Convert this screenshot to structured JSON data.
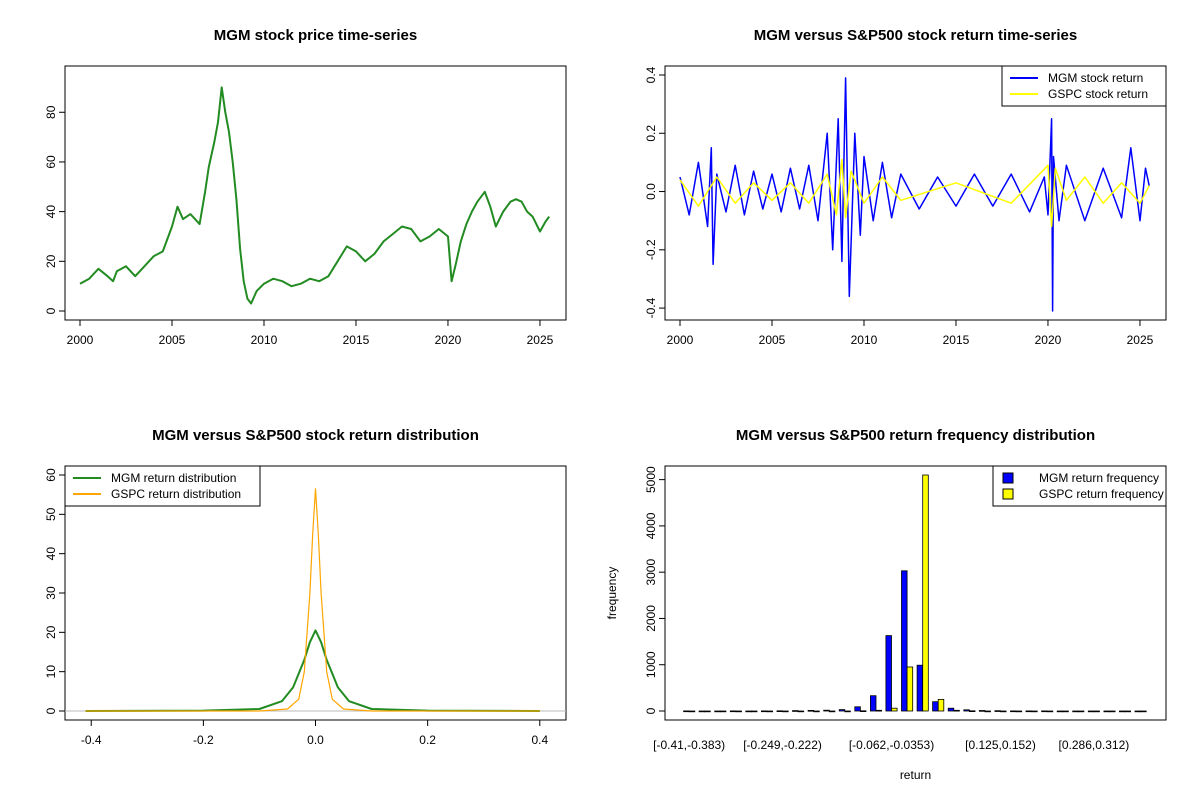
{
  "charts": [
    {
      "type": "line",
      "title": "MGM stock price time-series",
      "xlabel": "",
      "ylabel": "",
      "xlim": [
        2000,
        2025.6
      ],
      "ylim": [
        0,
        95
      ],
      "xticks": [
        2000,
        2005,
        2010,
        2015,
        2020,
        2025
      ],
      "yticks": [
        0,
        20,
        40,
        60,
        80
      ],
      "series": [
        {
          "name": "MGM stock price",
          "color": "#228B22",
          "x": [
            2000,
            2000.5,
            2001,
            2001.5,
            2001.8,
            2002,
            2002.5,
            2003,
            2003.5,
            2004,
            2004.5,
            2005,
            2005.3,
            2005.6,
            2006,
            2006.5,
            2006.8,
            2007,
            2007.3,
            2007.5,
            2007.7,
            2007.9,
            2008.1,
            2008.3,
            2008.5,
            2008.7,
            2008.9,
            2009.1,
            2009.3,
            2009.6,
            2010,
            2010.5,
            2011,
            2011.5,
            2012,
            2012.5,
            2013,
            2013.5,
            2014,
            2014.5,
            2015,
            2015.5,
            2016,
            2016.5,
            2017,
            2017.5,
            2018,
            2018.5,
            2019,
            2019.5,
            2020,
            2020.2,
            2020.4,
            2020.7,
            2021,
            2021.3,
            2021.6,
            2022,
            2022.3,
            2022.6,
            2023,
            2023.4,
            2023.7,
            2024,
            2024.3,
            2024.6,
            2025,
            2025.3,
            2025.5
          ],
          "y": [
            11,
            13,
            17,
            14,
            12,
            16,
            18,
            14,
            18,
            22,
            24,
            34,
            42,
            37,
            39,
            35,
            48,
            58,
            68,
            76,
            90,
            80,
            72,
            60,
            45,
            25,
            12,
            5,
            3,
            8,
            11,
            13,
            12,
            10,
            11,
            13,
            12,
            14,
            20,
            26,
            24,
            20,
            23,
            28,
            31,
            34,
            33,
            28,
            30,
            33,
            30,
            12,
            18,
            28,
            35,
            40,
            44,
            48,
            42,
            34,
            40,
            44,
            45,
            44,
            40,
            38,
            32,
            36,
            38
          ]
        }
      ]
    },
    {
      "type": "line",
      "title": "MGM versus S&P500 stock return time-series",
      "xlabel": "",
      "ylabel": "",
      "xlim": [
        2000,
        2025.6
      ],
      "ylim": [
        -0.41,
        0.4
      ],
      "xticks": [
        2000,
        2005,
        2010,
        2015,
        2020,
        2025
      ],
      "yticks": [
        -0.4,
        -0.2,
        0.0,
        0.2,
        0.4
      ],
      "ytick_labels": [
        "-0.4",
        "-0.2",
        "0.0",
        "0.2",
        "0.4"
      ],
      "series": [
        {
          "name": "MGM stock return",
          "color": "#0000FF",
          "x": [
            2000,
            2000.5,
            2001,
            2001.5,
            2001.7,
            2001.8,
            2002,
            2002.5,
            2003,
            2003.5,
            2004,
            2004.5,
            2005,
            2005.5,
            2006,
            2006.5,
            2007,
            2007.5,
            2008,
            2008.3,
            2008.6,
            2008.8,
            2009,
            2009.2,
            2009.5,
            2009.8,
            2010,
            2010.5,
            2011,
            2011.5,
            2012,
            2013,
            2014,
            2015,
            2016,
            2017,
            2018,
            2019,
            2019.8,
            2020,
            2020.2,
            2020.25,
            2020.3,
            2020.6,
            2021,
            2022,
            2023,
            2024,
            2024.5,
            2025,
            2025.3,
            2025.5
          ],
          "y": [
            0.05,
            -0.08,
            0.1,
            -0.12,
            0.15,
            -0.25,
            0.06,
            -0.07,
            0.09,
            -0.08,
            0.07,
            -0.06,
            0.06,
            -0.07,
            0.08,
            -0.06,
            0.09,
            -0.1,
            0.2,
            -0.2,
            0.25,
            -0.24,
            0.39,
            -0.36,
            0.2,
            -0.15,
            0.12,
            -0.1,
            0.1,
            -0.09,
            0.06,
            -0.06,
            0.05,
            -0.05,
            0.06,
            -0.05,
            0.06,
            -0.07,
            0.05,
            -0.08,
            0.25,
            -0.41,
            0.12,
            -0.1,
            0.09,
            -0.1,
            0.08,
            -0.09,
            0.15,
            -0.1,
            0.08,
            0.02
          ]
        },
        {
          "name": "GSPC stock return",
          "color": "#FFFF00",
          "x": [
            2000,
            2001,
            2002,
            2003,
            2004,
            2005,
            2006,
            2007,
            2008,
            2008.5,
            2008.8,
            2009,
            2009.3,
            2010,
            2011,
            2012,
            2015,
            2018,
            2020,
            2020.2,
            2020.4,
            2021,
            2022,
            2023,
            2024,
            2025,
            2025.5
          ],
          "y": [
            0.04,
            -0.05,
            0.05,
            -0.04,
            0.03,
            -0.03,
            0.03,
            -0.04,
            0.06,
            -0.08,
            0.11,
            -0.09,
            0.07,
            -0.04,
            0.05,
            -0.03,
            0.03,
            -0.04,
            0.09,
            -0.12,
            0.08,
            -0.03,
            0.05,
            -0.04,
            0.03,
            -0.04,
            0.02
          ]
        }
      ],
      "legend": {
        "position": "top-right",
        "items": [
          "MGM stock return",
          "GSPC stock return"
        ]
      }
    },
    {
      "type": "line",
      "title": "MGM versus S&P500 stock return distribution",
      "xlabel": "",
      "ylabel": "",
      "xlim": [
        -0.42,
        0.42
      ],
      "ylim": [
        0,
        60
      ],
      "xticks": [
        -0.4,
        -0.2,
        0.0,
        0.2,
        0.4
      ],
      "xtick_labels": [
        "-0.4",
        "-0.2",
        "0.0",
        "0.2",
        "0.4"
      ],
      "yticks": [
        0,
        10,
        20,
        30,
        40,
        50,
        60
      ],
      "series": [
        {
          "name": "MGM return distribution",
          "color": "#228B22",
          "x": [
            -0.41,
            -0.2,
            -0.1,
            -0.06,
            -0.04,
            -0.02,
            -0.01,
            0,
            0.01,
            0.02,
            0.04,
            0.06,
            0.1,
            0.2,
            0.4
          ],
          "y": [
            0,
            0.1,
            0.5,
            2.5,
            6,
            13,
            17.5,
            20.5,
            17.5,
            13,
            6,
            2.5,
            0.5,
            0.1,
            0
          ]
        },
        {
          "name": "GSPC return distribution",
          "color": "#FFA500",
          "x": [
            -0.41,
            -0.1,
            -0.05,
            -0.03,
            -0.02,
            -0.01,
            -0.005,
            0,
            0.005,
            0.01,
            0.02,
            0.03,
            0.05,
            0.1,
            0.4
          ],
          "y": [
            0,
            0,
            0.5,
            3,
            10,
            30,
            45,
            56.5,
            45,
            30,
            10,
            3,
            0.5,
            0,
            0
          ]
        }
      ],
      "legend": {
        "position": "top-left",
        "items": [
          "MGM return distribution",
          "GSPC return distribution"
        ]
      }
    },
    {
      "type": "bar",
      "title": "MGM versus S&P500 return frequency distribution",
      "xlabel": "return",
      "ylabel": "frequency",
      "ylim": [
        0,
        5100
      ],
      "yticks": [
        0,
        1000,
        2000,
        3000,
        4000,
        5000
      ],
      "categories": [
        "[-0.41,-0.383)",
        "[-0.383,-0.356)",
        "[-0.356,-0.329)",
        "[-0.329,-0.302)",
        "[-0.302,-0.276)",
        "[-0.276,-0.249)",
        "[-0.249,-0.222)",
        "[-0.222,-0.195)",
        "[-0.195,-0.168)",
        "[-0.168,-0.141)",
        "[-0.141,-0.115)",
        "[-0.115,-0.0883)",
        "[-0.0883,-0.062)",
        "[-0.062,-0.0353)",
        "[-0.0353,-0.00829)",
        "[-0.00829,0.0185)",
        "[0.0185,0.0454)",
        "[0.0454,0.0722)",
        "[0.0722,0.0991)",
        "[0.0991,0.125)",
        "[0.125,0.152)",
        "[0.152,0.179)",
        "[0.179,0.206)",
        "[0.206,0.232)",
        "[0.232,0.259)",
        "[0.259,0.286)",
        "[0.286,0.312)",
        "[0.312,0.339)",
        "[0.339,0.366)",
        "[0.366,0.393)"
      ],
      "shown_tick_labels": [
        "[-0.41,-0.383)",
        "[-0.249,-0.222)",
        "[-0.062,-0.0353)",
        "[0.125,0.152)",
        "[0.286,0.312)"
      ],
      "series": [
        {
          "name": "MGM return frequency",
          "color": "#0000FF",
          "values": [
            2,
            1,
            1,
            2,
            1,
            3,
            4,
            8,
            12,
            18,
            30,
            90,
            330,
            1630,
            3030,
            990,
            200,
            60,
            25,
            10,
            6,
            3,
            2,
            2,
            1,
            1,
            1,
            1,
            1,
            1
          ]
        },
        {
          "name": "GSPC return frequency",
          "color": "#FFFF00",
          "values": [
            0,
            0,
            0,
            0,
            0,
            0,
            0,
            0,
            0,
            0,
            0,
            5,
            15,
            60,
            950,
            5100,
            250,
            15,
            5,
            0,
            0,
            0,
            0,
            0,
            0,
            0,
            0,
            0,
            0,
            0
          ]
        }
      ],
      "legend": {
        "position": "top-right",
        "items": [
          "MGM return frequency",
          "GSPC return frequency"
        ]
      }
    }
  ]
}
